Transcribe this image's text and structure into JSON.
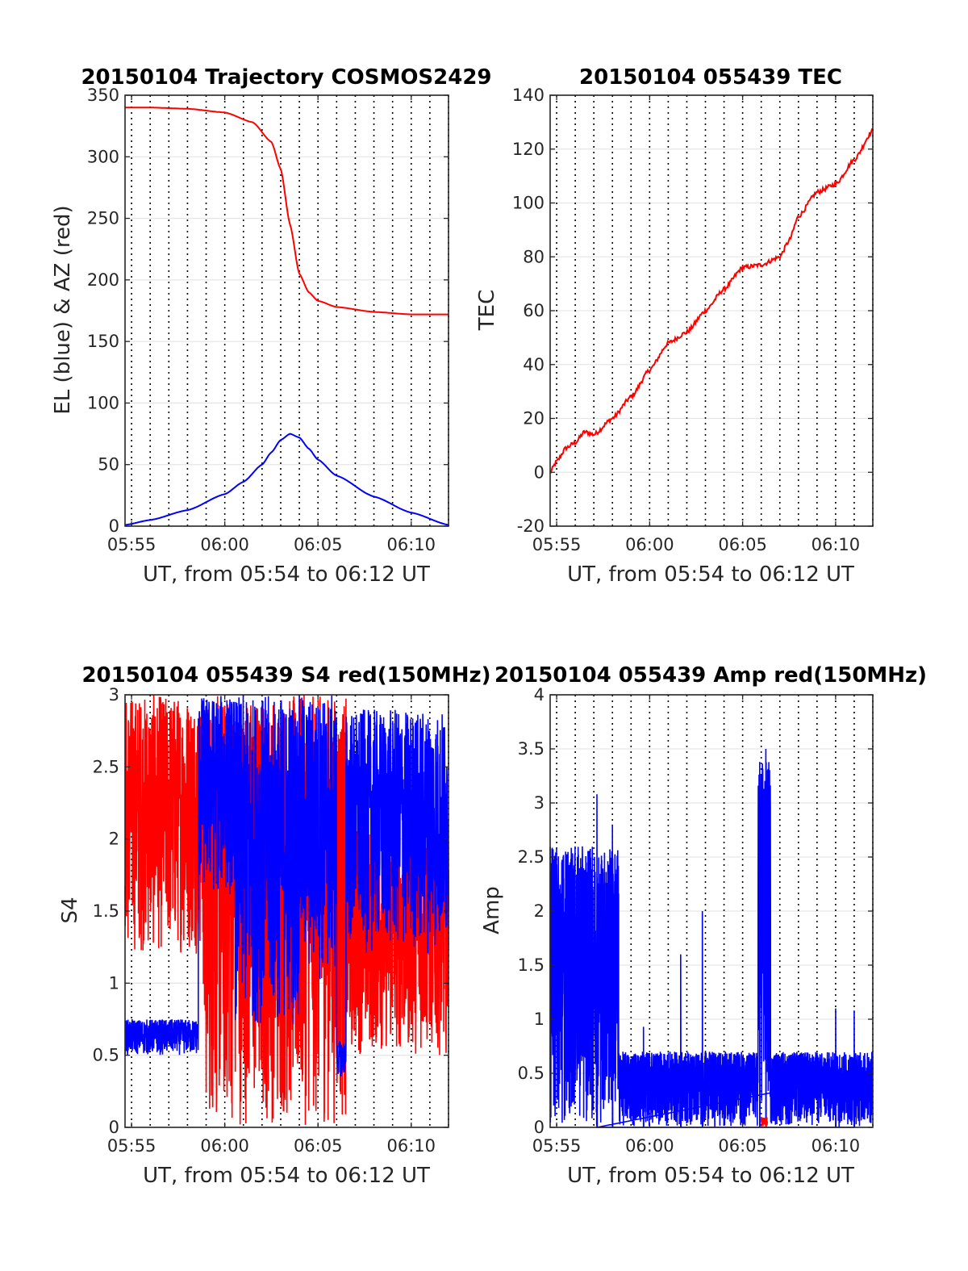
{
  "figure": {
    "background": "#ffffff"
  },
  "chart_data": [
    {
      "id": "traj",
      "type": "line",
      "title": "20150104 Trajectory COSMOS2429",
      "xlabel": "UT, from 05:54 to 06:12 UT",
      "ylabel": "EL (blue) & AZ (red)",
      "xlim": [
        "05:54:39",
        "06:12:00"
      ],
      "ylim": [
        0,
        350
      ],
      "yticks": [
        0,
        50,
        100,
        150,
        200,
        250,
        300,
        350
      ],
      "xticks": [
        {
          "t": "05:55",
          "label": "05:55"
        },
        {
          "t": "06:00",
          "label": "06:00"
        },
        {
          "t": "06:05",
          "label": "06:05"
        },
        {
          "t": "06:10",
          "label": "06:10"
        }
      ],
      "grid_minutes": true,
      "series": [
        {
          "color": "#ff0000",
          "x": [
            "05:54:39",
            "05:56:00",
            "05:58:00",
            "06:00:00",
            "06:01:30",
            "06:02:30",
            "06:03:00",
            "06:03:30",
            "06:04:00",
            "06:04:30",
            "06:05:00",
            "06:06:00",
            "06:08:00",
            "06:10:00",
            "06:12:00"
          ],
          "y": [
            340,
            340,
            339,
            336,
            328,
            312,
            290,
            245,
            205,
            190,
            183,
            178,
            174,
            172,
            172
          ]
        },
        {
          "color": "#0000ff",
          "x": [
            "05:54:39",
            "05:56:00",
            "05:58:00",
            "06:00:00",
            "06:01:00",
            "06:02:00",
            "06:02:30",
            "06:03:00",
            "06:03:30",
            "06:04:00",
            "06:04:30",
            "06:05:00",
            "06:06:00",
            "06:08:00",
            "06:10:00",
            "06:12:00"
          ],
          "y": [
            1,
            5,
            13,
            26,
            36,
            50,
            60,
            70,
            75,
            72,
            63,
            54,
            41,
            24,
            11,
            1
          ]
        }
      ]
    },
    {
      "id": "tec",
      "type": "line",
      "title": "20150104 055439 TEC",
      "xlabel": "UT, from 05:54 to 06:12 UT",
      "ylabel": "TEC",
      "xlim": [
        "05:54:39",
        "06:12:00"
      ],
      "ylim": [
        -20,
        140
      ],
      "yticks": [
        -20,
        0,
        20,
        40,
        60,
        80,
        100,
        120,
        140
      ],
      "xticks": [
        {
          "t": "05:55",
          "label": "05:55"
        },
        {
          "t": "06:00",
          "label": "06:00"
        },
        {
          "t": "06:05",
          "label": "06:05"
        },
        {
          "t": "06:10",
          "label": "06:10"
        }
      ],
      "grid_minutes": true,
      "series": [
        {
          "color": "#ff0000",
          "x": [
            "05:54:39",
            "05:55:00",
            "05:55:30",
            "05:56:00",
            "05:56:30",
            "05:57:00",
            "05:58:00",
            "05:59:00",
            "06:00:00",
            "06:01:00",
            "06:02:00",
            "06:03:00",
            "06:04:00",
            "06:05:00",
            "06:06:00",
            "06:07:00",
            "06:07:30",
            "06:08:00",
            "06:09:00",
            "06:10:00",
            "06:11:00",
            "06:12:00"
          ],
          "y": [
            0,
            4,
            9,
            11,
            15,
            14,
            20,
            28,
            38,
            48,
            52,
            60,
            68,
            76,
            77,
            80,
            86,
            95,
            104,
            107,
            116,
            127
          ]
        }
      ]
    },
    {
      "id": "s4",
      "type": "line",
      "title": "20150104 055439 S4 red(150MHz)",
      "xlabel": "UT, from 05:54 to 06:12 UT",
      "ylabel": "S4",
      "xlim": [
        "05:54:39",
        "06:12:00"
      ],
      "ylim": [
        0,
        3
      ],
      "yticks": [
        "0",
        "0.5",
        "1",
        "1.5",
        "2",
        "2.5",
        "3"
      ],
      "xticks": [
        {
          "t": "05:55",
          "label": "05:55"
        },
        {
          "t": "06:00",
          "label": "06:00"
        },
        {
          "t": "06:05",
          "label": "06:05"
        },
        {
          "t": "06:10",
          "label": "06:10"
        }
      ],
      "grid_minutes": true,
      "noisy": true,
      "series": [
        {
          "color": "#ff0000",
          "segments": [
            {
              "from": "05:54:39",
              "to": "05:58:50",
              "lo": 1.2,
              "hi": 3.0
            },
            {
              "from": "05:58:50",
              "to": "06:03:30",
              "lo": 0.0,
              "hi": 3.0
            },
            {
              "from": "06:03:30",
              "to": "06:06:30",
              "lo": 0.0,
              "hi": 3.0
            },
            {
              "from": "06:06:30",
              "to": "06:12:00",
              "lo": 0.5,
              "hi": 2.1
            }
          ]
        },
        {
          "color": "#0000ff",
          "segments": [
            {
              "from": "05:54:39",
              "to": "05:58:35",
              "lo": 0.5,
              "hi": 0.75
            },
            {
              "from": "05:58:35",
              "to": "06:00:30",
              "lo": 1.6,
              "hi": 3.0
            },
            {
              "from": "06:00:30",
              "to": "06:04:00",
              "lo": 0.7,
              "hi": 3.0
            },
            {
              "from": "06:04:00",
              "to": "06:06:00",
              "lo": 1.0,
              "hi": 3.0
            },
            {
              "from": "06:06:00",
              "to": "06:06:30",
              "lo": 0.35,
              "hi": 0.6
            },
            {
              "from": "06:06:30",
              "to": "06:12:00",
              "lo": 1.2,
              "hi": 2.9
            }
          ]
        }
      ]
    },
    {
      "id": "amp",
      "type": "line",
      "title": "20150104 055439 Amp red(150MHz)",
      "xlabel": "UT, from 05:54 to 06:12 UT",
      "ylabel": "Amp",
      "xlim": [
        "05:54:39",
        "06:12:00"
      ],
      "ylim": [
        0,
        4
      ],
      "yticks": [
        "0",
        "0.5",
        "1",
        "1.5",
        "2",
        "2.5",
        "3",
        "3.5",
        "4"
      ],
      "xticks": [
        {
          "t": "05:55",
          "label": "05:55"
        },
        {
          "t": "06:00",
          "label": "06:00"
        },
        {
          "t": "06:05",
          "label": "06:05"
        },
        {
          "t": "06:10",
          "label": "06:10"
        }
      ],
      "grid_minutes": true,
      "noisy": true,
      "series": [
        {
          "color": "#0000ff",
          "segments": [
            {
              "from": "05:54:39",
              "to": "05:58:20",
              "lo": 0.0,
              "hi": 2.6
            },
            {
              "from": "05:58:20",
              "to": "06:05:50",
              "lo": 0.0,
              "hi": 0.7
            },
            {
              "from": "06:05:50",
              "to": "06:06:30",
              "lo": 0.0,
              "hi": 3.4
            },
            {
              "from": "06:06:30",
              "to": "06:12:00",
              "lo": 0.0,
              "hi": 0.7
            }
          ],
          "spikes": [
            {
              "t": "05:57:10",
              "v": 3.08
            },
            {
              "t": "05:58:00",
              "v": 2.8
            },
            {
              "t": "05:59:40",
              "v": 0.93
            },
            {
              "t": "06:01:40",
              "v": 1.6
            },
            {
              "t": "06:02:50",
              "v": 2.0
            },
            {
              "t": "06:05:55",
              "v": 3.38
            },
            {
              "t": "06:06:15",
              "v": 3.5
            },
            {
              "t": "06:10:00",
              "v": 1.1
            },
            {
              "t": "06:11:00",
              "v": 1.08
            }
          ]
        },
        {
          "color": "#ff0000",
          "segments": [
            {
              "from": "06:06:00",
              "to": "06:06:20",
              "lo": 0.0,
              "hi": 0.1
            }
          ]
        }
      ]
    }
  ]
}
